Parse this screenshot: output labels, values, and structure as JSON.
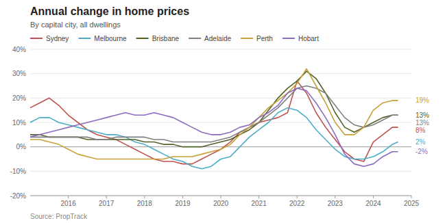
{
  "chart_data": {
    "type": "line",
    "title": "Annual change in home prices",
    "subtitle": "By capital city, all dwellings",
    "source": "Source: PropTrack",
    "xlim": [
      2015.0,
      2025.0
    ],
    "xticks": [
      2016,
      2017,
      2018,
      2019,
      2020,
      2021,
      2022,
      2023,
      2024,
      2025
    ],
    "ylim": [
      -20,
      40
    ],
    "yticks": [
      {
        "value": -20,
        "label": "-20%"
      },
      {
        "value": -10,
        "label": "-10%"
      },
      {
        "value": 0,
        "label": "0%"
      },
      {
        "value": 10,
        "label": "10%"
      },
      {
        "value": 20,
        "label": "20%"
      },
      {
        "value": 30,
        "label": "30%"
      },
      {
        "value": 40,
        "label": "40%"
      }
    ],
    "grid": true,
    "legend": "top",
    "x": [
      2015.0,
      2015.25,
      2015.5,
      2015.75,
      2016.0,
      2016.25,
      2016.5,
      2016.75,
      2017.0,
      2017.25,
      2017.5,
      2017.75,
      2018.0,
      2018.25,
      2018.5,
      2018.75,
      2019.0,
      2019.25,
      2019.5,
      2019.75,
      2020.0,
      2020.25,
      2020.5,
      2020.75,
      2021.0,
      2021.25,
      2021.5,
      2021.75,
      2022.0,
      2022.25,
      2022.5,
      2022.75,
      2023.0,
      2023.25,
      2023.5,
      2023.75,
      2024.0,
      2024.25,
      2024.5,
      2024.65
    ],
    "series": [
      {
        "name": "Sydney",
        "color": "#c0504d",
        "end_label": {
          "value": 8,
          "label": "8%"
        },
        "values": [
          16,
          18,
          20,
          17,
          13,
          10,
          7,
          5,
          4,
          3,
          1,
          -1,
          -3,
          -5,
          -6,
          -6,
          -7,
          -7,
          -5,
          -3,
          -1,
          2,
          6,
          8,
          10,
          11,
          12,
          14,
          27,
          22,
          14,
          8,
          3,
          -2,
          -5,
          -6,
          2,
          5,
          8,
          8
        ]
      },
      {
        "name": "Melbourne",
        "color": "#4bacc6",
        "end_label": {
          "value": 2,
          "label": "2%"
        },
        "values": [
          10,
          12,
          12,
          10,
          9,
          8,
          7,
          6,
          5,
          5,
          4,
          2,
          1,
          -1,
          -3,
          -5,
          -6,
          -8,
          -9,
          -8,
          -5,
          -4,
          0,
          4,
          7,
          10,
          14,
          16,
          15,
          12,
          7,
          3,
          -1,
          -4,
          -5,
          -5,
          -4,
          -2,
          1,
          2
        ]
      },
      {
        "name": "Brisbane",
        "color": "#4f6228",
        "end_label": {
          "value": 13,
          "label": "13%"
        },
        "values": [
          5,
          5,
          4,
          4,
          4,
          4,
          3,
          3,
          3,
          3,
          3,
          3,
          2,
          2,
          1,
          1,
          0,
          0,
          0,
          1,
          2,
          3,
          5,
          7,
          10,
          15,
          20,
          24,
          27,
          31,
          28,
          22,
          14,
          8,
          6,
          8,
          10,
          12,
          13,
          13
        ]
      },
      {
        "name": "Adelaide",
        "color": "#7f7f7f",
        "end_label": {
          "value": 13,
          "label": "13%"
        },
        "values": [
          4,
          4,
          4,
          4,
          4,
          4,
          4,
          3,
          3,
          4,
          4,
          4,
          4,
          3,
          3,
          2,
          2,
          2,
          2,
          2,
          3,
          4,
          6,
          8,
          10,
          13,
          16,
          20,
          24,
          25,
          24,
          22,
          17,
          12,
          9,
          8,
          9,
          11,
          13,
          13
        ]
      },
      {
        "name": "Perth",
        "color": "#c6a135",
        "end_label": {
          "value": 19,
          "label": "19%"
        },
        "values": [
          3,
          3,
          2,
          1,
          -1,
          -3,
          -4,
          -5,
          -5,
          -5,
          -5,
          -5,
          -5,
          -5,
          -5,
          -4,
          -4,
          -4,
          -3,
          -2,
          -1,
          1,
          5,
          8,
          12,
          16,
          19,
          22,
          26,
          32,
          25,
          18,
          10,
          5,
          5,
          8,
          15,
          18,
          19,
          19
        ]
      },
      {
        "name": "Hobart",
        "color": "#8b6abf",
        "end_label": {
          "value": -2,
          "label": "-2%"
        },
        "values": [
          4,
          5,
          6,
          7,
          8,
          9,
          10,
          11,
          12,
          13,
          14,
          13,
          13,
          14,
          13,
          12,
          10,
          8,
          6,
          5,
          5,
          6,
          8,
          9,
          12,
          14,
          17,
          22,
          24,
          23,
          18,
          12,
          5,
          -3,
          -7,
          -8,
          -7,
          -4,
          -2,
          -2
        ]
      }
    ]
  }
}
